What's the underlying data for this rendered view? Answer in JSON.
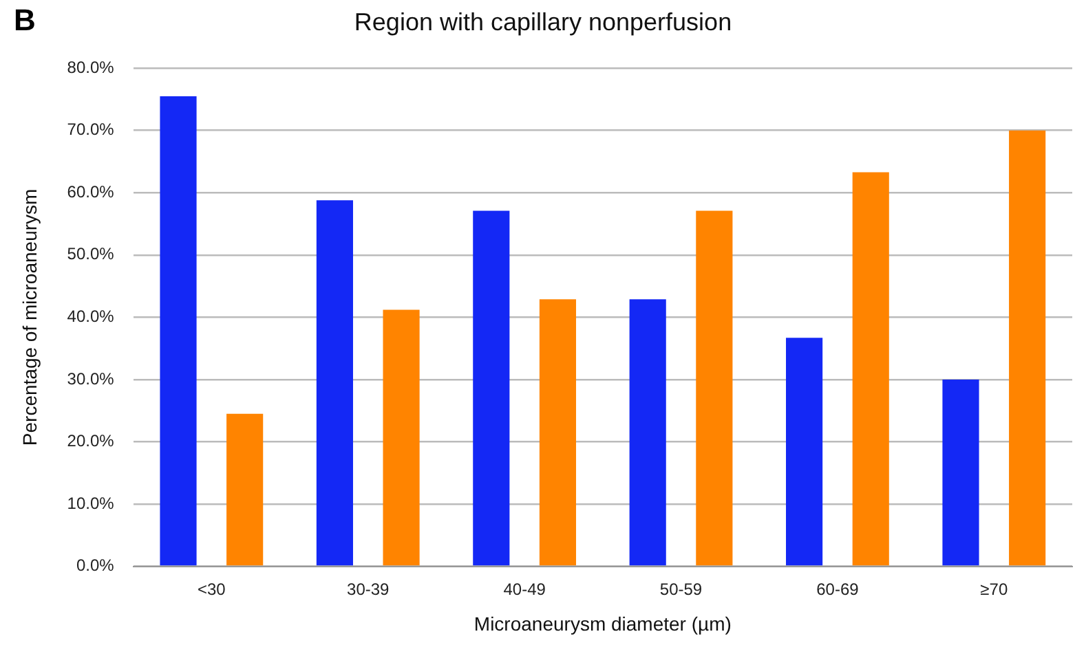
{
  "chart_data": {
    "type": "bar",
    "title": "Region with capillary nonperfusion",
    "xlabel": "Microaneurysm diameter (µm)",
    "ylabel": "Percentage of microaneurysm",
    "annotations": [
      "B"
    ],
    "categories": [
      "<30",
      "30-39",
      "40-49",
      "50-59",
      "60-69",
      "≥70"
    ],
    "series": [
      {
        "color": "#1428f5",
        "values": [
          75.5,
          58.8,
          57.1,
          42.9,
          36.7,
          30.0
        ]
      },
      {
        "color": "#ff8400",
        "values": [
          24.5,
          41.2,
          42.9,
          57.1,
          63.3,
          70.0
        ]
      }
    ],
    "ylim": [
      0,
      80
    ],
    "yticks": [
      {
        "value": 0,
        "label": "0.0%"
      },
      {
        "value": 10,
        "label": "10.0%"
      },
      {
        "value": 20,
        "label": "20.0%"
      },
      {
        "value": 30,
        "label": "30.0%"
      },
      {
        "value": 40,
        "label": "40.0%"
      },
      {
        "value": 50,
        "label": "50.0%"
      },
      {
        "value": 60,
        "label": "60.0%"
      },
      {
        "value": 70,
        "label": "70.0%"
      },
      {
        "value": 80,
        "label": "80.0%"
      }
    ],
    "grid": "y",
    "legend": false
  }
}
